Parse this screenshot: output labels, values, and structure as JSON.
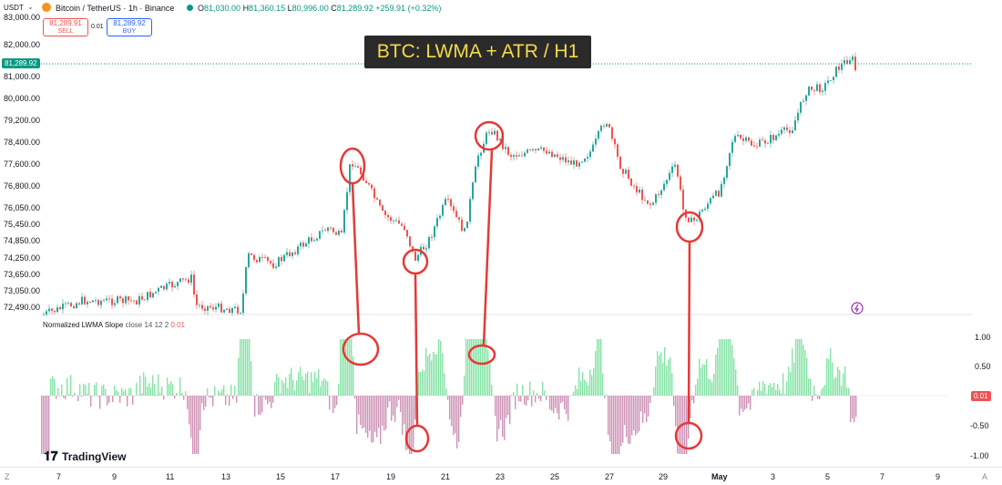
{
  "header": {
    "currency": "USDT",
    "symbol_title": "Bitcoin / TetherUS · 1h · Binance",
    "ohlc": {
      "open_label": "O",
      "open": "81,030.00",
      "high_label": "H",
      "high": "81,360.15",
      "low_label": "L",
      "low": "80,996.00",
      "close_label": "C",
      "close": "81,289.92",
      "change": "+259.91 (+0.32%)"
    },
    "sell_price": "81,289.91",
    "sell_label": "SELL",
    "spread": "0.01",
    "buy_price": "81,289.92",
    "buy_label": "BUY"
  },
  "annotation_title": "BTC: LWMA + ATR / H1",
  "price_axis": {
    "labels": [
      "83,000.00",
      "82,000.00",
      "81,000.00",
      "80,000.00",
      "79,200.00",
      "78,400.00",
      "77,600.00",
      "76,800.00",
      "76,050.00",
      "75,450.00",
      "74,850.00",
      "74,250.00",
      "73,650.00",
      "73,050.00",
      "72,490.00"
    ],
    "current_price": "81,289.92"
  },
  "indicator": {
    "name": "Normalized LWMA Slope",
    "params": "close 14 12 2",
    "value": "0.01",
    "axis_labels": [
      "1.00",
      "0.50",
      "-0.50",
      "-1.00"
    ]
  },
  "time_axis": {
    "labels": [
      "7",
      "9",
      "11",
      "13",
      "15",
      "17",
      "19",
      "21",
      "23",
      "25",
      "27",
      "29",
      "May",
      "3",
      "5",
      "7",
      "9"
    ],
    "left_icon": "Z",
    "right_icon": "A"
  },
  "branding": {
    "logo_text": "TradingView"
  },
  "colors": {
    "up": "#26a69a",
    "down": "#ef5350",
    "hist_up": "#86e3a6",
    "hist_down": "#ce93b6",
    "annotation_red": "#e53935",
    "price_tag": "#089981",
    "title_bg": "#2a2a2a",
    "title_fg": "#f5d94a"
  }
}
